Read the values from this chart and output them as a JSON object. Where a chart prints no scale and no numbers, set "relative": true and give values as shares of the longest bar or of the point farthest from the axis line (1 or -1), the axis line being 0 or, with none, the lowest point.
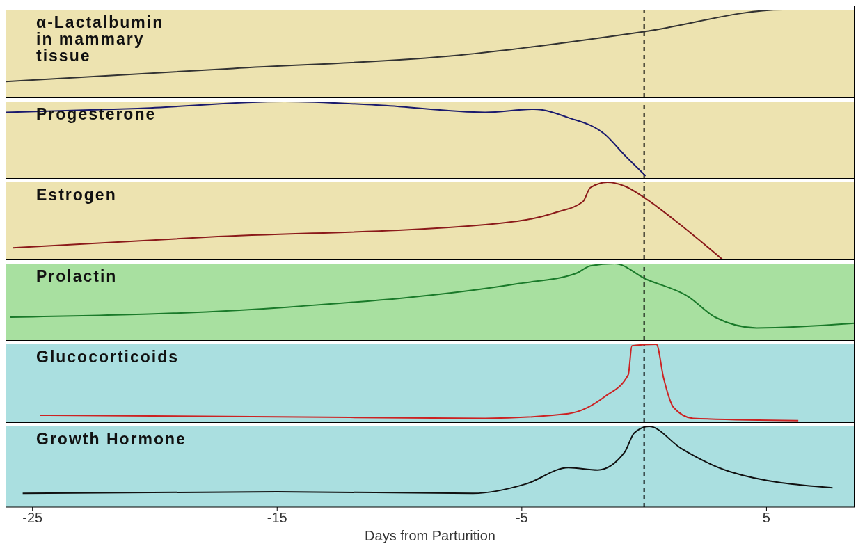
{
  "chart_data": [
    {
      "type": "line",
      "title": "α-Lactalbumin\nin mammary\ntissue",
      "relative": true,
      "x": [
        -26.1,
        -16.8,
        -7.6,
        0,
        5.7,
        8.6
      ],
      "values": [
        0.18,
        0.33,
        0.48,
        0.75,
        1,
        1
      ],
      "color": "#333333",
      "xlim": [
        -26.1,
        8.6
      ],
      "tick_labels": false,
      "bands": [
        {
          "axis": "x",
          "from": -26.1,
          "to": 8.6,
          "color": "#ede3b0"
        }
      ],
      "ref_lines": [
        {
          "axis": "x",
          "value": 0,
          "color": "#000000",
          "line_style": "dashed"
        }
      ]
    },
    {
      "type": "line",
      "title": "Progesterone",
      "relative": true,
      "x": [
        -26.1,
        -20.7,
        -14.7,
        -10.7,
        -6.5,
        -4.5,
        -3.1,
        -1.6,
        -0.8,
        0.06
      ],
      "values": [
        0.86,
        0.91,
        1,
        0.95,
        0.86,
        0.9,
        0.79,
        0.57,
        0.3,
        0.03
      ],
      "color": "#1a1a6e",
      "xlim": [
        -26.1,
        8.6
      ],
      "tick_labels": false,
      "bands": [
        {
          "axis": "x",
          "from": -26.1,
          "to": 8.6,
          "color": "#ede3b0"
        }
      ],
      "ref_lines": [
        {
          "axis": "x",
          "value": 0,
          "color": "#000000",
          "line_style": "dashed"
        }
      ]
    },
    {
      "type": "line",
      "title": "Estrogen",
      "relative": true,
      "x": [
        -25.8,
        -17.8,
        -6.5,
        -3.6,
        -2.5,
        -2.2,
        -1.5,
        -0.8,
        0.06,
        1.2,
        3.2
      ],
      "values": [
        0.15,
        0.29,
        0.45,
        0.61,
        0.75,
        0.93,
        1,
        0.95,
        0.79,
        0.52,
        0
      ],
      "color": "#8b1a1a",
      "xlim": [
        -26.1,
        8.6
      ],
      "tick_labels": false,
      "bands": [
        {
          "axis": "x",
          "from": -26.1,
          "to": 8.6,
          "color": "#ede3b0"
        }
      ],
      "ref_lines": [
        {
          "axis": "x",
          "value": 0,
          "color": "#000000",
          "line_style": "dashed"
        }
      ]
    },
    {
      "type": "line",
      "title": "Prolactin",
      "relative": true,
      "x": [
        -25.9,
        -14.6,
        -5.1,
        -2.8,
        -2.2,
        -1.2,
        0.06,
        1.8,
        2.9,
        4.6,
        8.6
      ],
      "values": [
        0.3,
        0.43,
        0.74,
        0.87,
        0.97,
        1,
        0.8,
        0.57,
        0.3,
        0.16,
        0.22
      ],
      "color": "#1a7a2a",
      "xlim": [
        -26.1,
        8.6
      ],
      "tick_labels": false,
      "bands": [
        {
          "axis": "x",
          "from": -26.1,
          "to": 8.6,
          "color": "#a8e0a0"
        }
      ],
      "ref_lines": [
        {
          "axis": "x",
          "value": 0,
          "color": "#000000",
          "line_style": "dashed"
        }
      ]
    },
    {
      "type": "line",
      "title": "Glucocorticoids",
      "relative": true,
      "x": [
        -24.7,
        -15,
        -6.5,
        -3.1,
        -1.6,
        -0.65,
        -0.5,
        0.5,
        0.8,
        1.2,
        2,
        6.3
      ],
      "values": [
        0.09,
        0.07,
        0.05,
        0.11,
        0.33,
        0.61,
        0.98,
        1,
        0.56,
        0.19,
        0.05,
        0.02
      ],
      "color": "#cc2222",
      "xlim": [
        -26.1,
        8.6
      ],
      "tick_labels": false,
      "bands": [
        {
          "axis": "x",
          "from": -26.1,
          "to": 8.6,
          "color": "#aadfe0"
        }
      ],
      "ref_lines": [
        {
          "axis": "x",
          "value": 0,
          "color": "#000000",
          "line_style": "dashed"
        }
      ]
    },
    {
      "type": "line",
      "title": "Growth Hormone",
      "xlabel": "Days from Parturition",
      "relative": true,
      "x": [
        -25.4,
        -15,
        -7,
        -4.8,
        -3.1,
        -1.9,
        -0.8,
        -0.4,
        0.2,
        1.5,
        3.5,
        7.7
      ],
      "values": [
        0.17,
        0.19,
        0.17,
        0.29,
        0.49,
        0.46,
        0.68,
        0.92,
        1,
        0.73,
        0.44,
        0.24
      ],
      "color": "#111111",
      "xlim": [
        -26.1,
        8.6
      ],
      "xticks": [
        -25,
        -15,
        -5,
        5
      ],
      "tick_labels": "x",
      "bands": [
        {
          "axis": "x",
          "from": -26.1,
          "to": 8.6,
          "color": "#aadfe0"
        }
      ],
      "ref_lines": [
        {
          "axis": "x",
          "value": 0,
          "color": "#000000",
          "line_style": "dashed"
        }
      ]
    }
  ]
}
